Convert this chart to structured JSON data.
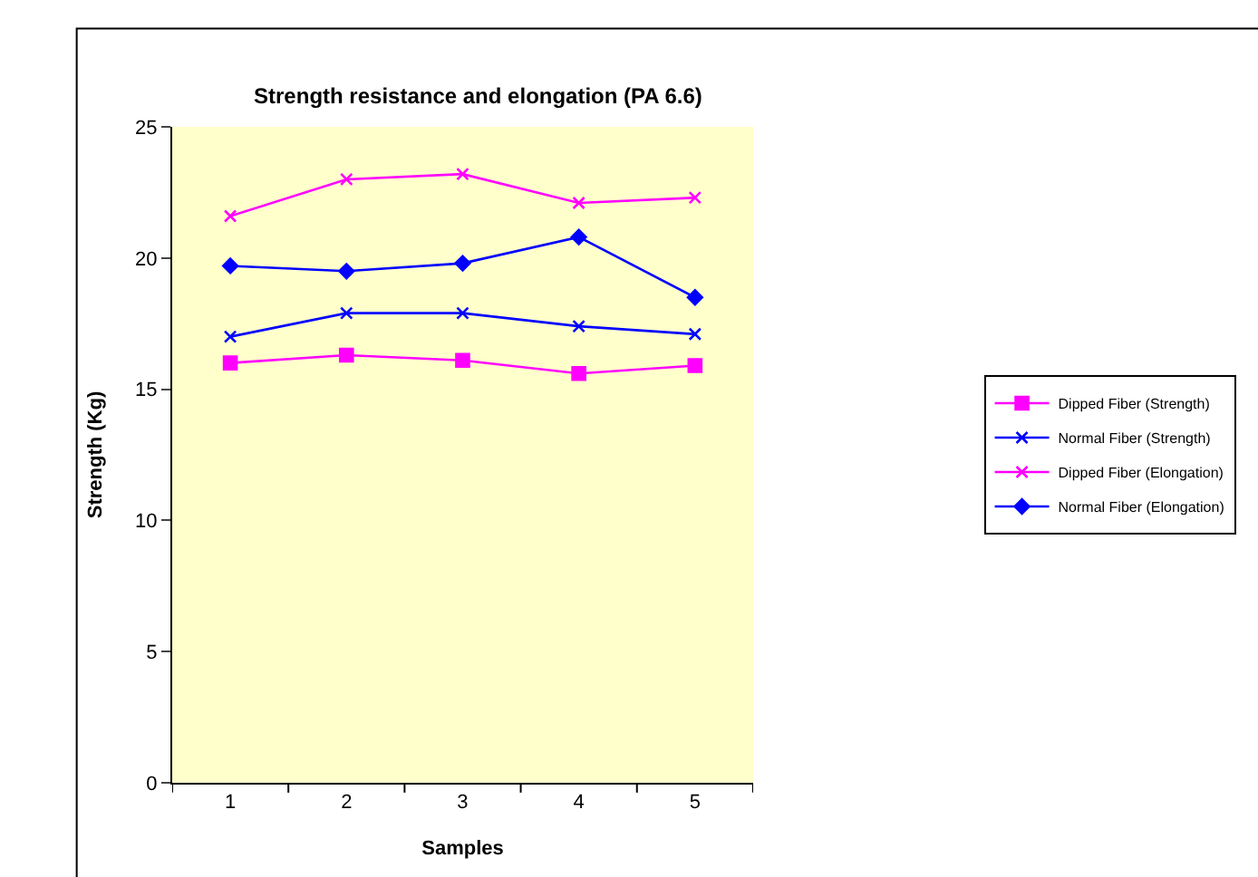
{
  "chart_data": {
    "type": "line",
    "title": "Strength resistance and elongation (PA 6.6)",
    "xlabel": "Samples",
    "ylabel": "Strength (Kg)",
    "categories": [
      "1",
      "2",
      "3",
      "4",
      "5"
    ],
    "series": [
      {
        "name": "Dipped Fiber (Strength)",
        "color": "#ff00ff",
        "marker": "square",
        "values": [
          16.0,
          16.3,
          16.1,
          15.6,
          15.9
        ]
      },
      {
        "name": "Normal Fiber (Strength)",
        "color": "#0000ff",
        "marker": "cross",
        "values": [
          17.0,
          17.9,
          17.9,
          17.4,
          17.1
        ]
      },
      {
        "name": "Dipped Fiber (Elongation)",
        "color": "#ff00ff",
        "marker": "cross",
        "values": [
          21.6,
          23.0,
          23.2,
          22.1,
          22.3
        ]
      },
      {
        "name": "Normal Fiber (Elongation)",
        "color": "#0000ff",
        "marker": "diamond",
        "values": [
          19.7,
          19.5,
          19.8,
          20.8,
          18.5
        ]
      }
    ],
    "ylim": [
      0,
      25
    ],
    "yticks": [
      0,
      5,
      10,
      15,
      20,
      25
    ],
    "grid": false,
    "legend": "right",
    "line_style": "solid"
  }
}
